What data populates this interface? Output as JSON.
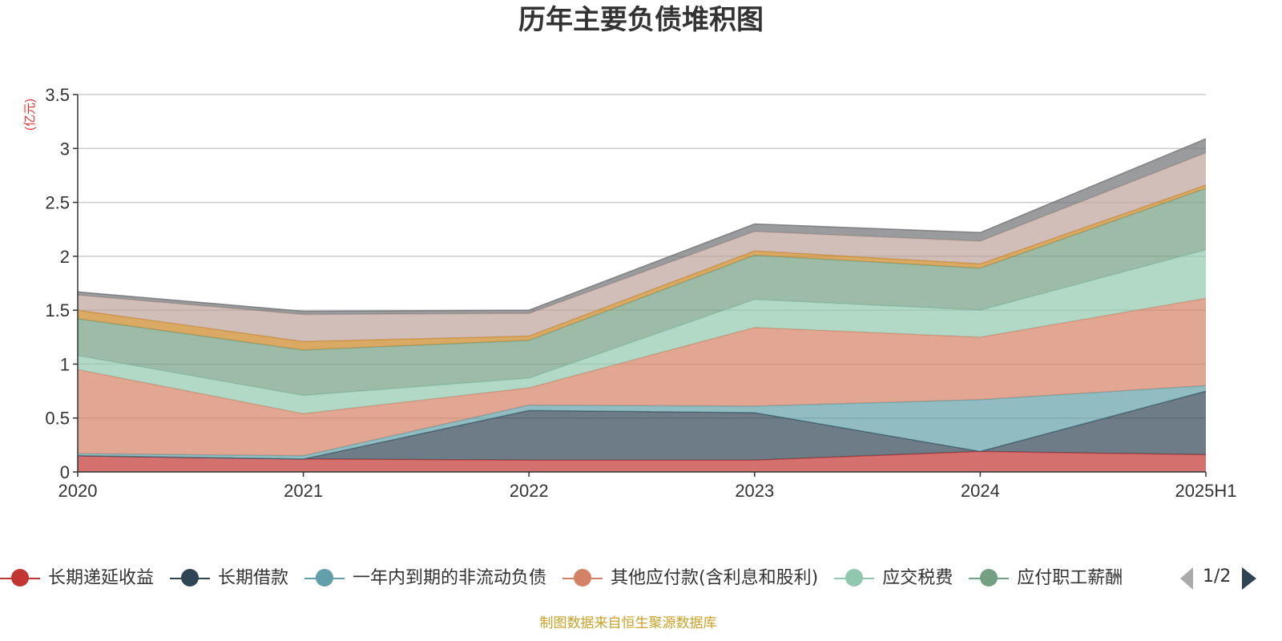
{
  "title": "历年主要负债堆积图",
  "source_note": "制图数据来自恒生聚源数据库",
  "pager": {
    "text": "1/2"
  },
  "chart_data": {
    "type": "area",
    "stacked": true,
    "title": "历年主要负债堆积图",
    "unit_label": "(亿元)",
    "categories": [
      "2020",
      "2021",
      "2022",
      "2023",
      "2024",
      "2025H1"
    ],
    "ylim": [
      0,
      3.5
    ],
    "yticks": [
      0,
      0.5,
      1,
      1.5,
      2,
      2.5,
      3,
      3.5
    ],
    "ytick_labels": [
      "0",
      "0.5",
      "1",
      "1.5",
      "2",
      "2.5",
      "3",
      "3.5"
    ],
    "grid": true,
    "legend_position": "bottom",
    "series": [
      {
        "name": "长期递延收益",
        "color": "#c23531",
        "values": [
          0.15,
          0.12,
          0.11,
          0.11,
          0.19,
          0.16
        ]
      },
      {
        "name": "长期借款",
        "color": "#2f4554",
        "values": [
          0.0,
          0.0,
          0.46,
          0.44,
          0.0,
          0.59
        ]
      },
      {
        "name": "一年内到期的非流动负债",
        "color": "#61a0a8",
        "values": [
          0.02,
          0.03,
          0.05,
          0.06,
          0.48,
          0.05
        ]
      },
      {
        "name": "其他应付款(含利息和股利)",
        "color": "#d48265",
        "values": [
          0.78,
          0.39,
          0.16,
          0.73,
          0.58,
          0.81
        ]
      },
      {
        "name": "应交税费",
        "color": "#91c7ae",
        "values": [
          0.13,
          0.17,
          0.09,
          0.26,
          0.25,
          0.45
        ]
      },
      {
        "name": "应付职工薪酬",
        "color": "#749f83",
        "values": [
          0.34,
          0.42,
          0.35,
          0.41,
          0.39,
          0.57
        ]
      },
      {
        "name": "",
        "color": "#ca8622",
        "values": [
          0.08,
          0.08,
          0.04,
          0.04,
          0.04,
          0.03
        ]
      },
      {
        "name": "",
        "color": "#bda29a",
        "values": [
          0.14,
          0.25,
          0.21,
          0.18,
          0.21,
          0.3
        ]
      },
      {
        "name": "",
        "color": "#6e7074",
        "values": [
          0.03,
          0.03,
          0.03,
          0.07,
          0.08,
          0.13
        ]
      }
    ],
    "legend_visible": [
      "长期递延收益",
      "长期借款",
      "一年内到期的非流动负债",
      "其他应付款(含利息和股利)",
      "应交税费",
      "应付职工薪酬"
    ]
  }
}
